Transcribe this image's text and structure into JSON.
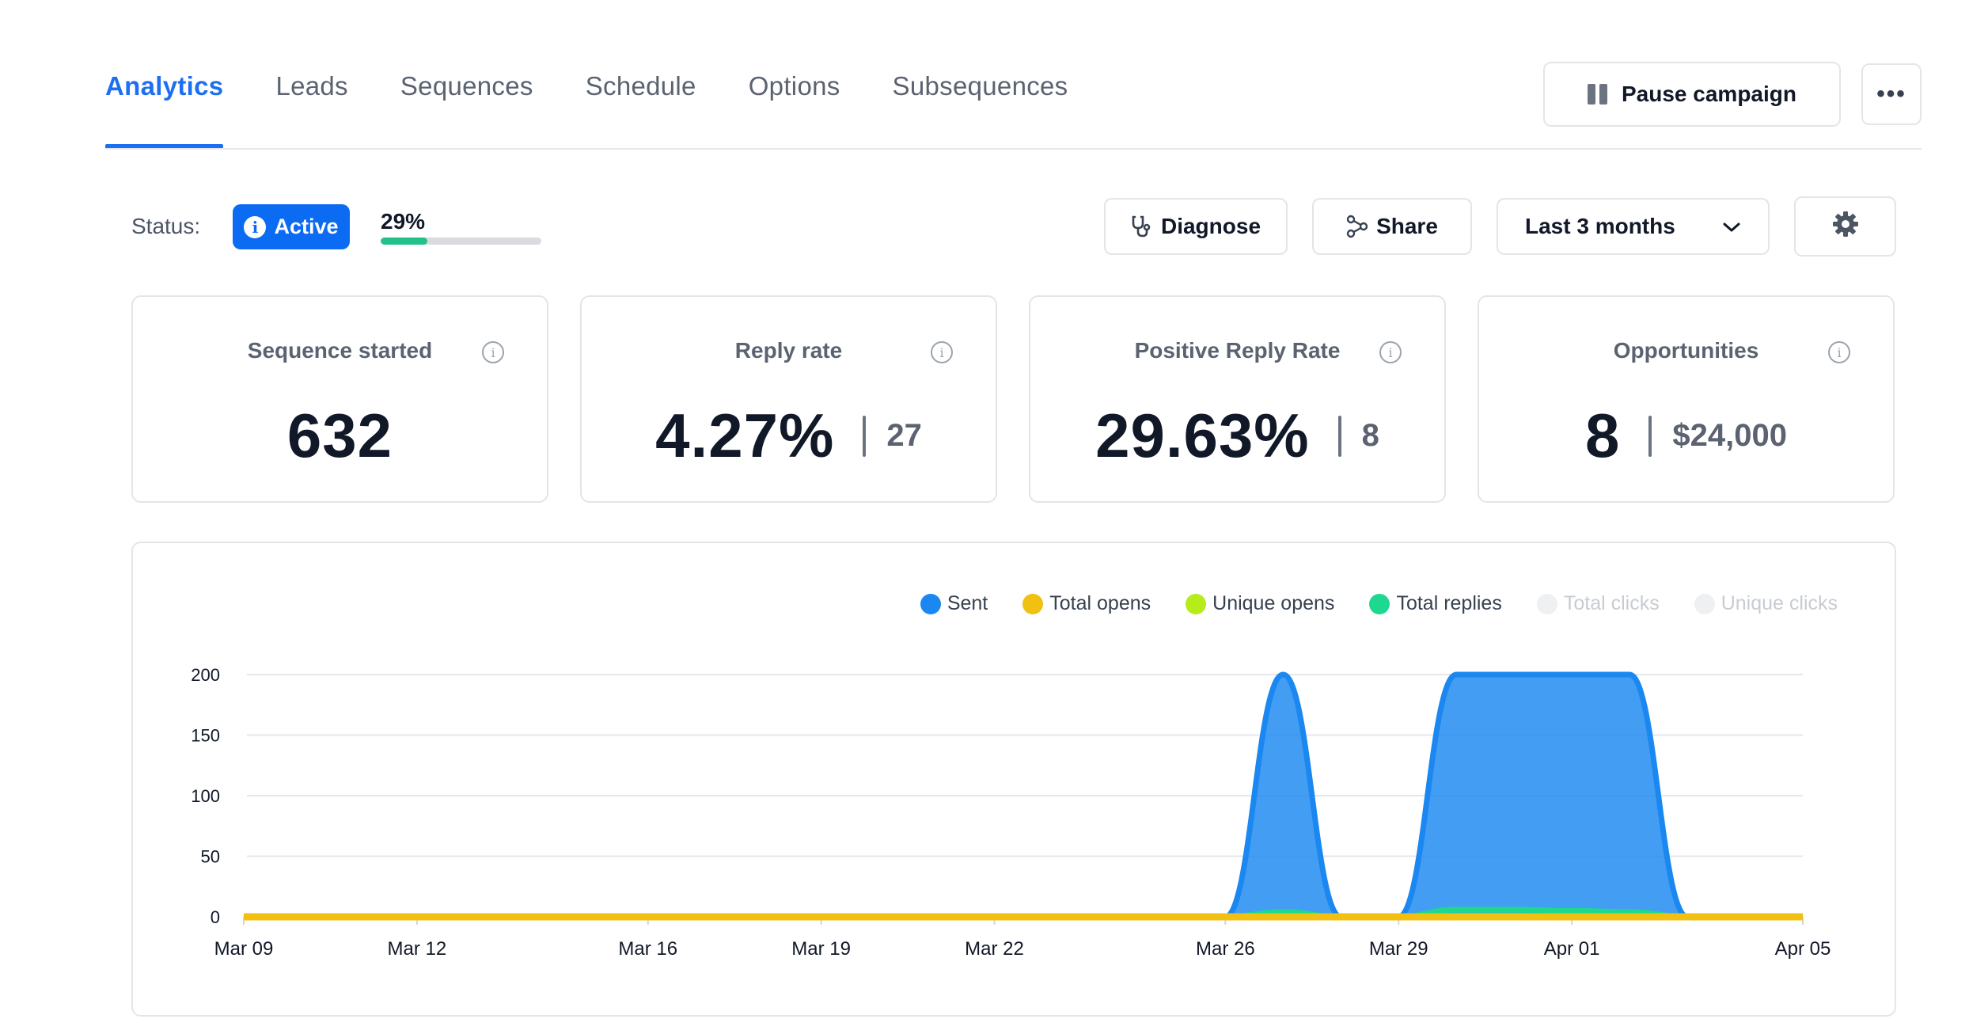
{
  "tabs": [
    {
      "label": "Analytics",
      "active": true
    },
    {
      "label": "Leads"
    },
    {
      "label": "Sequences"
    },
    {
      "label": "Schedule"
    },
    {
      "label": "Options"
    },
    {
      "label": "Subsequences"
    }
  ],
  "header": {
    "pause_label": "Pause campaign",
    "more_label": "•••"
  },
  "status": {
    "label": "Status:",
    "badge": "Active",
    "progress_text": "29%",
    "progress_value": 0.29
  },
  "toolbar": {
    "diagnose_label": "Diagnose",
    "share_label": "Share",
    "range_label": "Last 3 months"
  },
  "cards": {
    "sequence": {
      "title": "Sequence started",
      "value": "632"
    },
    "reply": {
      "title": "Reply rate",
      "value": "4.27%",
      "count": "27"
    },
    "positive": {
      "title": "Positive Reply Rate",
      "value": "29.63%",
      "count": "8"
    },
    "opportunities": {
      "title": "Opportunities",
      "value": "8",
      "amount": "$24,000"
    }
  },
  "colors": {
    "accent": "#1d6ff2",
    "sent": "#1a88f0",
    "total_opens": "#f2c011",
    "unique_opens": "#b6ec1a",
    "total_replies": "#1fd88f",
    "disabled": "#eef0f2"
  },
  "chart_data": {
    "type": "area",
    "legend_position": "top-right",
    "grid": true,
    "ylim": [
      0,
      200
    ],
    "yticks": [
      0,
      50,
      100,
      150,
      200
    ],
    "xtick_labels": [
      "Mar 09",
      "Mar 12",
      "Mar 16",
      "Mar 19",
      "Mar 22",
      "Mar 26",
      "Mar 29",
      "Apr 01",
      "Apr 05"
    ],
    "x": [
      "Mar 09",
      "Mar 10",
      "Mar 11",
      "Mar 12",
      "Mar 13",
      "Mar 14",
      "Mar 15",
      "Mar 16",
      "Mar 17",
      "Mar 18",
      "Mar 19",
      "Mar 20",
      "Mar 21",
      "Mar 22",
      "Mar 23",
      "Mar 24",
      "Mar 25",
      "Mar 26",
      "Mar 27",
      "Mar 28",
      "Mar 29",
      "Mar 30",
      "Mar 31",
      "Apr 01",
      "Apr 02",
      "Apr 03",
      "Apr 04",
      "Apr 05"
    ],
    "series": [
      {
        "name": "Sent",
        "values": [
          0,
          0,
          0,
          0,
          0,
          0,
          0,
          0,
          0,
          0,
          0,
          0,
          0,
          0,
          0,
          0,
          0,
          0,
          200,
          0,
          0,
          200,
          200,
          200,
          200,
          0,
          0,
          0
        ]
      },
      {
        "name": "Total opens",
        "values": [
          0,
          0,
          0,
          0,
          0,
          0,
          0,
          0,
          0,
          0,
          0,
          0,
          0,
          0,
          0,
          0,
          0,
          0,
          0,
          0,
          0,
          0,
          0,
          0,
          0,
          0,
          0,
          0
        ]
      },
      {
        "name": "Unique opens",
        "values": [
          0,
          0,
          0,
          0,
          0,
          0,
          0,
          0,
          0,
          0,
          0,
          0,
          0,
          0,
          0,
          0,
          0,
          0,
          0,
          0,
          0,
          0,
          0,
          0,
          0,
          0,
          0,
          0
        ]
      },
      {
        "name": "Total replies",
        "values": [
          0,
          0,
          0,
          0,
          0,
          0,
          0,
          0,
          0,
          0,
          0,
          0,
          0,
          0,
          0,
          0,
          0,
          0,
          4,
          0,
          0,
          6,
          6,
          5,
          4,
          0,
          0,
          0
        ]
      },
      {
        "name": "Total clicks",
        "values": [
          0,
          0,
          0,
          0,
          0,
          0,
          0,
          0,
          0,
          0,
          0,
          0,
          0,
          0,
          0,
          0,
          0,
          0,
          0,
          0,
          0,
          0,
          0,
          0,
          0,
          0,
          0,
          0
        ],
        "disabled": true
      },
      {
        "name": "Unique clicks",
        "values": [
          0,
          0,
          0,
          0,
          0,
          0,
          0,
          0,
          0,
          0,
          0,
          0,
          0,
          0,
          0,
          0,
          0,
          0,
          0,
          0,
          0,
          0,
          0,
          0,
          0,
          0,
          0,
          0
        ],
        "disabled": true
      }
    ]
  }
}
